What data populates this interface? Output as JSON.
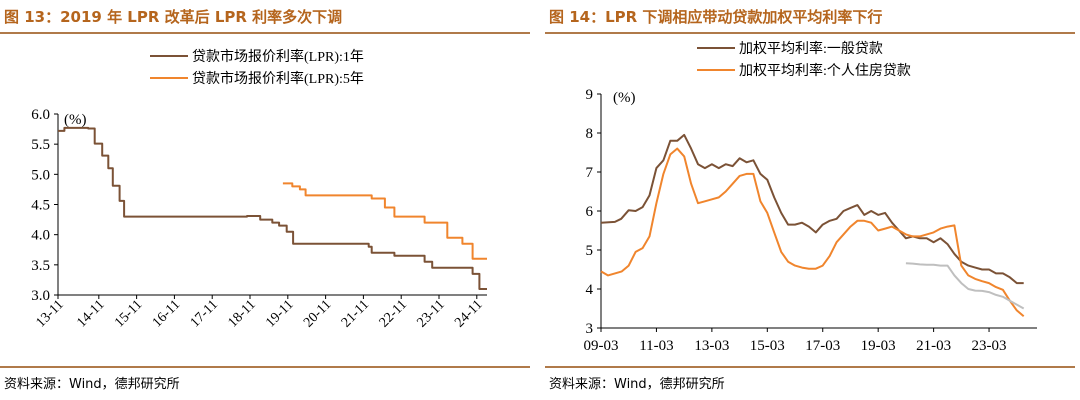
{
  "figures": [
    {
      "title": "图 13：2019 年 LPR 改革后 LPR 利率多次下调",
      "source": "资料来源：Wind，德邦研究所",
      "chart_data": {
        "type": "line",
        "unit_label": "(%)",
        "ylim": [
          3.0,
          6.0
        ],
        "yticks": [
          "6.0",
          "5.5",
          "5.0",
          "4.5",
          "4.0",
          "3.5",
          "3.0"
        ],
        "xlim": [
          2013.75,
          2025.1
        ],
        "xticks": [
          {
            "x": 2013.75,
            "label": "13-11"
          },
          {
            "x": 2014.83,
            "label": "14-11"
          },
          {
            "x": 2015.83,
            "label": "15-11"
          },
          {
            "x": 2016.83,
            "label": "16-11"
          },
          {
            "x": 2017.83,
            "label": "17-11"
          },
          {
            "x": 2018.83,
            "label": "18-11"
          },
          {
            "x": 2019.83,
            "label": "19-11"
          },
          {
            "x": 2020.83,
            "label": "20-11"
          },
          {
            "x": 2021.83,
            "label": "21-11"
          },
          {
            "x": 2022.83,
            "label": "22-11"
          },
          {
            "x": 2023.83,
            "label": "23-11"
          },
          {
            "x": 2024.83,
            "label": "24-11"
          }
        ],
        "legend_position": "top",
        "series": [
          {
            "name": "贷款市场报价利率(LPR):1年",
            "color": "#7b5236",
            "step": true,
            "points": [
              [
                2013.75,
                5.72
              ],
              [
                2013.92,
                5.77
              ],
              [
                2014.55,
                5.76
              ],
              [
                2014.72,
                5.51
              ],
              [
                2014.92,
                5.31
              ],
              [
                2015.08,
                5.1
              ],
              [
                2015.2,
                4.81
              ],
              [
                2015.38,
                4.56
              ],
              [
                2015.5,
                4.3
              ],
              [
                2018.75,
                4.31
              ],
              [
                2019.1,
                4.25
              ],
              [
                2019.42,
                4.2
              ],
              [
                2019.6,
                4.15
              ],
              [
                2019.8,
                4.05
              ],
              [
                2019.97,
                3.85
              ],
              [
                2021.97,
                3.8
              ],
              [
                2022.05,
                3.7
              ],
              [
                2022.65,
                3.65
              ],
              [
                2023.45,
                3.55
              ],
              [
                2023.65,
                3.45
              ],
              [
                2024.72,
                3.35
              ],
              [
                2024.9,
                3.1
              ],
              [
                2025.1,
                3.1
              ]
            ]
          },
          {
            "name": "贷款市场报价利率(LPR):5年",
            "color": "#f0852d",
            "step": true,
            "points": [
              [
                2019.7,
                4.85
              ],
              [
                2019.95,
                4.8
              ],
              [
                2020.15,
                4.75
              ],
              [
                2020.3,
                4.65
              ],
              [
                2022.05,
                4.6
              ],
              [
                2022.4,
                4.45
              ],
              [
                2022.65,
                4.3
              ],
              [
                2023.45,
                4.2
              ],
              [
                2024.05,
                3.95
              ],
              [
                2024.45,
                3.85
              ],
              [
                2024.72,
                3.6
              ],
              [
                2025.1,
                3.6
              ]
            ]
          }
        ]
      }
    },
    {
      "title": "图 14：LPR 下调相应带动贷款加权平均利率下行",
      "source": "资料来源：Wind，德邦研究所",
      "chart_data": {
        "type": "line",
        "unit_label": "(%)",
        "ylim": [
          3,
          9
        ],
        "yticks": [
          "9",
          "8",
          "7",
          "6",
          "5",
          "4",
          "3"
        ],
        "xlim": [
          2009.17,
          2024.9
        ],
        "xticks": [
          {
            "x": 2009.17,
            "label": "09-03"
          },
          {
            "x": 2011.17,
            "label": "11-03"
          },
          {
            "x": 2013.17,
            "label": "13-03"
          },
          {
            "x": 2015.17,
            "label": "15-03"
          },
          {
            "x": 2017.17,
            "label": "17-03"
          },
          {
            "x": 2019.17,
            "label": "19-03"
          },
          {
            "x": 2021.17,
            "label": "21-03"
          },
          {
            "x": 2023.17,
            "label": "23-03"
          }
        ],
        "legend_position": "top",
        "series": [
          {
            "name": "加权平均利率:一般贷款",
            "color": "#7b5236",
            "step": false,
            "points": [
              [
                2009.17,
                5.7
              ],
              [
                2009.67,
                5.72
              ],
              [
                2009.9,
                5.8
              ],
              [
                2010.17,
                6.02
              ],
              [
                2010.42,
                6.0
              ],
              [
                2010.67,
                6.1
              ],
              [
                2010.92,
                6.4
              ],
              [
                2011.17,
                7.1
              ],
              [
                2011.42,
                7.3
              ],
              [
                2011.67,
                7.8
              ],
              [
                2011.92,
                7.8
              ],
              [
                2012.17,
                7.95
              ],
              [
                2012.42,
                7.6
              ],
              [
                2012.67,
                7.2
              ],
              [
                2012.92,
                7.1
              ],
              [
                2013.17,
                7.2
              ],
              [
                2013.42,
                7.1
              ],
              [
                2013.67,
                7.2
              ],
              [
                2013.92,
                7.15
              ],
              [
                2014.17,
                7.35
              ],
              [
                2014.42,
                7.25
              ],
              [
                2014.67,
                7.3
              ],
              [
                2014.92,
                6.95
              ],
              [
                2015.17,
                6.8
              ],
              [
                2015.42,
                6.35
              ],
              [
                2015.67,
                5.95
              ],
              [
                2015.92,
                5.65
              ],
              [
                2016.17,
                5.65
              ],
              [
                2016.42,
                5.7
              ],
              [
                2016.67,
                5.6
              ],
              [
                2016.92,
                5.45
              ],
              [
                2017.17,
                5.65
              ],
              [
                2017.42,
                5.75
              ],
              [
                2017.67,
                5.8
              ],
              [
                2017.92,
                6.0
              ],
              [
                2018.17,
                6.08
              ],
              [
                2018.42,
                6.15
              ],
              [
                2018.67,
                5.9
              ],
              [
                2018.92,
                6.0
              ],
              [
                2019.17,
                5.9
              ],
              [
                2019.42,
                5.95
              ],
              [
                2019.67,
                5.7
              ],
              [
                2019.92,
                5.5
              ],
              [
                2020.17,
                5.3
              ],
              [
                2020.42,
                5.35
              ],
              [
                2020.67,
                5.3
              ],
              [
                2020.92,
                5.3
              ],
              [
                2021.17,
                5.2
              ],
              [
                2021.42,
                5.3
              ],
              [
                2021.67,
                5.15
              ],
              [
                2021.92,
                4.9
              ],
              [
                2022.17,
                4.7
              ],
              [
                2022.42,
                4.6
              ],
              [
                2022.67,
                4.55
              ],
              [
                2022.92,
                4.5
              ],
              [
                2023.17,
                4.5
              ],
              [
                2023.42,
                4.4
              ],
              [
                2023.67,
                4.4
              ],
              [
                2023.92,
                4.3
              ],
              [
                2024.17,
                4.15
              ],
              [
                2024.42,
                4.15
              ]
            ]
          },
          {
            "name": "加权平均利率:个人住房贷款",
            "color": "#f0852d",
            "step": false,
            "points": [
              [
                2009.17,
                4.45
              ],
              [
                2009.42,
                4.35
              ],
              [
                2009.67,
                4.4
              ],
              [
                2009.92,
                4.45
              ],
              [
                2010.17,
                4.6
              ],
              [
                2010.42,
                4.95
              ],
              [
                2010.67,
                5.05
              ],
              [
                2010.92,
                5.35
              ],
              [
                2011.17,
                6.2
              ],
              [
                2011.42,
                6.95
              ],
              [
                2011.67,
                7.45
              ],
              [
                2011.92,
                7.6
              ],
              [
                2012.17,
                7.4
              ],
              [
                2012.42,
                6.7
              ],
              [
                2012.67,
                6.2
              ],
              [
                2012.92,
                6.25
              ],
              [
                2013.17,
                6.3
              ],
              [
                2013.42,
                6.35
              ],
              [
                2013.67,
                6.5
              ],
              [
                2013.92,
                6.7
              ],
              [
                2014.17,
                6.9
              ],
              [
                2014.42,
                6.95
              ],
              [
                2014.67,
                6.95
              ],
              [
                2014.92,
                6.25
              ],
              [
                2015.17,
                5.95
              ],
              [
                2015.42,
                5.45
              ],
              [
                2015.67,
                4.95
              ],
              [
                2015.92,
                4.7
              ],
              [
                2016.17,
                4.6
              ],
              [
                2016.42,
                4.55
              ],
              [
                2016.67,
                4.52
              ],
              [
                2016.92,
                4.52
              ],
              [
                2017.17,
                4.6
              ],
              [
                2017.42,
                4.85
              ],
              [
                2017.67,
                5.2
              ],
              [
                2017.92,
                5.4
              ],
              [
                2018.17,
                5.6
              ],
              [
                2018.42,
                5.75
              ],
              [
                2018.67,
                5.75
              ],
              [
                2018.92,
                5.7
              ],
              [
                2019.17,
                5.5
              ],
              [
                2019.42,
                5.55
              ],
              [
                2019.67,
                5.6
              ],
              [
                2019.92,
                5.5
              ],
              [
                2020.17,
                5.4
              ],
              [
                2020.42,
                5.35
              ],
              [
                2020.67,
                5.35
              ],
              [
                2020.92,
                5.4
              ],
              [
                2021.17,
                5.45
              ],
              [
                2021.42,
                5.55
              ],
              [
                2021.67,
                5.6
              ],
              [
                2021.92,
                5.63
              ],
              [
                2022.17,
                4.6
              ],
              [
                2022.42,
                4.35
              ],
              [
                2022.67,
                4.26
              ],
              [
                2022.92,
                4.2
              ],
              [
                2023.17,
                4.15
              ],
              [
                2023.42,
                4.05
              ],
              [
                2023.67,
                3.98
              ],
              [
                2023.92,
                3.7
              ],
              [
                2024.17,
                3.45
              ],
              [
                2024.42,
                3.3
              ]
            ]
          },
          {
            "color": "#bfbfbf",
            "step": false,
            "points": [
              [
                2020.17,
                4.66
              ],
              [
                2020.42,
                4.65
              ],
              [
                2020.67,
                4.63
              ],
              [
                2020.92,
                4.62
              ],
              [
                2021.17,
                4.62
              ],
              [
                2021.42,
                4.6
              ],
              [
                2021.67,
                4.6
              ],
              [
                2021.92,
                4.35
              ],
              [
                2022.17,
                4.15
              ],
              [
                2022.42,
                4.0
              ],
              [
                2022.67,
                3.96
              ],
              [
                2022.92,
                3.95
              ],
              [
                2023.17,
                3.92
              ],
              [
                2023.42,
                3.85
              ],
              [
                2023.67,
                3.8
              ],
              [
                2023.92,
                3.7
              ],
              [
                2024.17,
                3.6
              ],
              [
                2024.42,
                3.5
              ]
            ]
          }
        ]
      }
    }
  ]
}
